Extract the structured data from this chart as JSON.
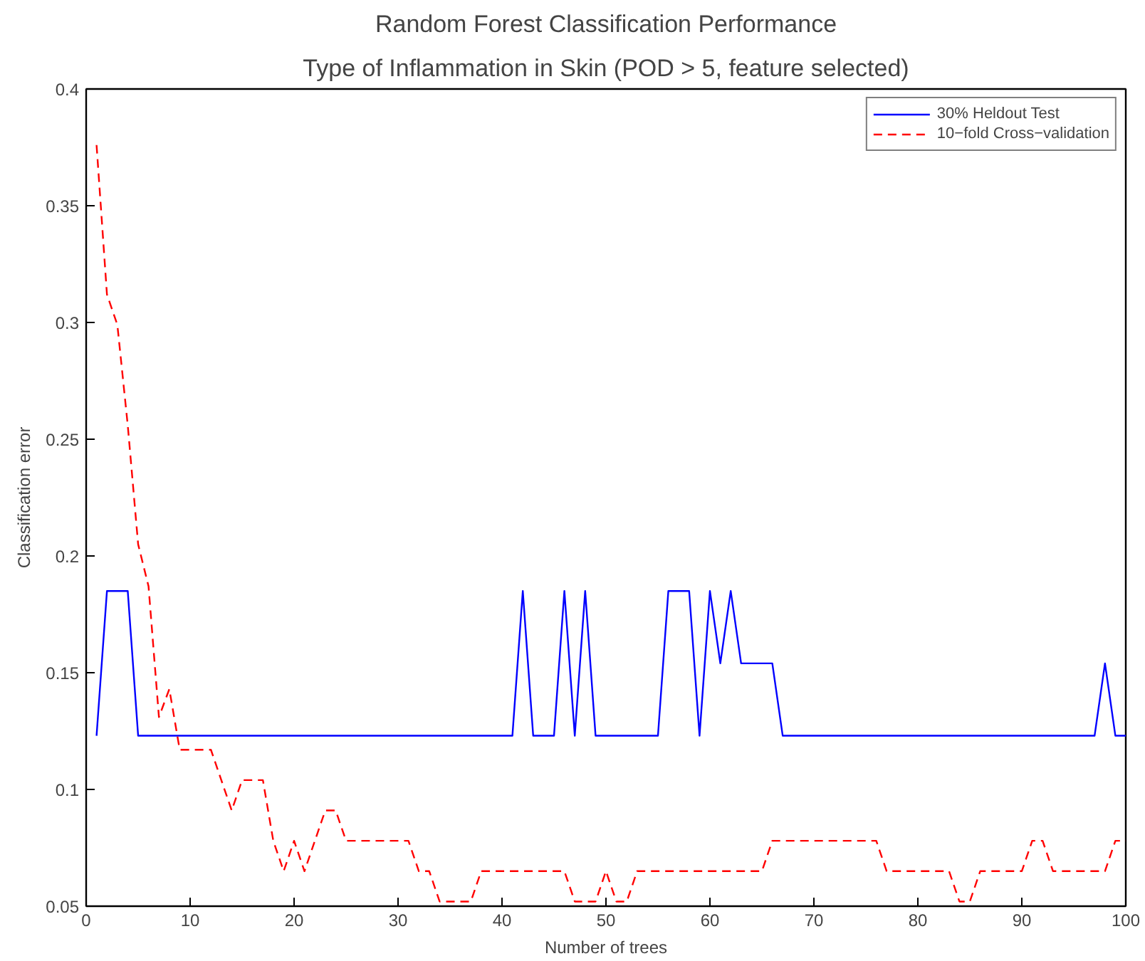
{
  "chart_data": {
    "type": "line",
    "title": "Random Forest Classification Performance",
    "subtitle": "Type of Inflammation in Skin (POD > 5, feature selected)",
    "xlabel": "Number of trees",
    "ylabel": "Classification error",
    "x": [
      1,
      2,
      3,
      4,
      5,
      6,
      7,
      8,
      9,
      10,
      11,
      12,
      13,
      14,
      15,
      16,
      17,
      18,
      19,
      20,
      21,
      22,
      23,
      24,
      25,
      26,
      27,
      28,
      29,
      30,
      31,
      32,
      33,
      34,
      35,
      36,
      37,
      38,
      39,
      40,
      41,
      42,
      43,
      44,
      45,
      46,
      47,
      48,
      49,
      50,
      51,
      52,
      53,
      54,
      55,
      56,
      57,
      58,
      59,
      60,
      61,
      62,
      63,
      64,
      65,
      66,
      67,
      68,
      69,
      70,
      71,
      72,
      73,
      74,
      75,
      76,
      77,
      78,
      79,
      80,
      81,
      82,
      83,
      84,
      85,
      86,
      87,
      88,
      89,
      90,
      91,
      92,
      93,
      94,
      95,
      96,
      97,
      98,
      99,
      100
    ],
    "series": [
      {
        "name": "30% Heldout Test",
        "color": "#0000ff",
        "line_style": "solid",
        "values": [
          0.123,
          0.185,
          0.185,
          0.185,
          0.123,
          0.123,
          0.123,
          0.123,
          0.123,
          0.123,
          0.123,
          0.123,
          0.123,
          0.123,
          0.123,
          0.123,
          0.123,
          0.123,
          0.123,
          0.123,
          0.123,
          0.123,
          0.123,
          0.123,
          0.123,
          0.123,
          0.123,
          0.123,
          0.123,
          0.123,
          0.123,
          0.123,
          0.123,
          0.123,
          0.123,
          0.123,
          0.123,
          0.123,
          0.123,
          0.123,
          0.123,
          0.185,
          0.123,
          0.123,
          0.123,
          0.185,
          0.123,
          0.185,
          0.123,
          0.123,
          0.123,
          0.123,
          0.123,
          0.123,
          0.123,
          0.185,
          0.185,
          0.185,
          0.123,
          0.185,
          0.154,
          0.185,
          0.154,
          0.154,
          0.154,
          0.154,
          0.123,
          0.123,
          0.123,
          0.123,
          0.123,
          0.123,
          0.123,
          0.123,
          0.123,
          0.123,
          0.123,
          0.123,
          0.123,
          0.123,
          0.123,
          0.123,
          0.123,
          0.123,
          0.123,
          0.123,
          0.123,
          0.123,
          0.123,
          0.123,
          0.123,
          0.123,
          0.123,
          0.123,
          0.123,
          0.123,
          0.123,
          0.154,
          0.123,
          0.123
        ]
      },
      {
        "name": "10−fold Cross−validation",
        "color": "#ff0000",
        "line_style": "dashed",
        "values": [
          0.376,
          0.312,
          0.299,
          0.256,
          0.205,
          0.187,
          0.131,
          0.143,
          0.117,
          0.117,
          0.117,
          0.117,
          0.104,
          0.091,
          0.104,
          0.104,
          0.104,
          0.078,
          0.065,
          0.078,
          0.065,
          0.078,
          0.091,
          0.091,
          0.078,
          0.078,
          0.078,
          0.078,
          0.078,
          0.078,
          0.078,
          0.065,
          0.065,
          0.052,
          0.052,
          0.052,
          0.052,
          0.065,
          0.065,
          0.065,
          0.065,
          0.065,
          0.065,
          0.065,
          0.065,
          0.065,
          0.052,
          0.052,
          0.052,
          0.065,
          0.052,
          0.052,
          0.065,
          0.065,
          0.065,
          0.065,
          0.065,
          0.065,
          0.065,
          0.065,
          0.065,
          0.065,
          0.065,
          0.065,
          0.065,
          0.078,
          0.078,
          0.078,
          0.078,
          0.078,
          0.078,
          0.078,
          0.078,
          0.078,
          0.078,
          0.078,
          0.065,
          0.065,
          0.065,
          0.065,
          0.065,
          0.065,
          0.065,
          0.052,
          0.052,
          0.065,
          0.065,
          0.065,
          0.065,
          0.065,
          0.078,
          0.078,
          0.065,
          0.065,
          0.065,
          0.065,
          0.065,
          0.065,
          0.078,
          0.078
        ]
      }
    ],
    "xlim": [
      0,
      100
    ],
    "xticks": [
      0,
      10,
      20,
      30,
      40,
      50,
      60,
      70,
      80,
      90,
      100
    ],
    "ylim": [
      0.05,
      0.4
    ],
    "yticks": [
      0.05,
      0.1,
      0.15,
      0.2,
      0.25,
      0.3,
      0.35,
      0.4
    ],
    "grid": false,
    "legend": "top right",
    "marker": "none"
  }
}
